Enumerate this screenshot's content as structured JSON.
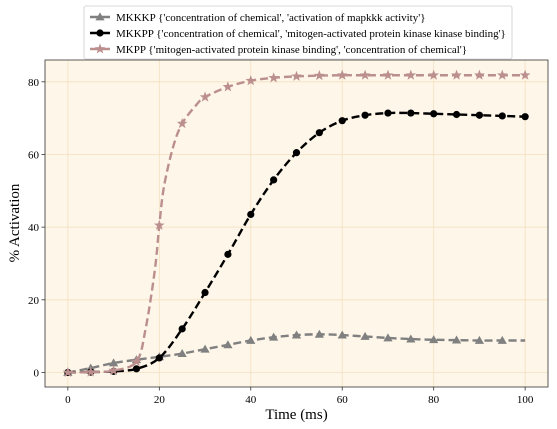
{
  "chart_data": {
    "type": "line",
    "xlabel": "Time (ms)",
    "ylabel": "% Activation",
    "xlim": [
      -5,
      105
    ],
    "ylim": [
      -4,
      86
    ],
    "xticks": [
      0,
      20,
      40,
      60,
      80,
      100
    ],
    "yticks": [
      0,
      20,
      40,
      60,
      80
    ],
    "grid": true,
    "legend_position": "top-center",
    "colors": {
      "plot_background": "#fdf6e9",
      "grid": "#f5dfbf",
      "axes": "#333333"
    },
    "series": [
      {
        "name": "MKKKP {'concentration of chemical', 'activation of mapkkk activity'}",
        "color": "#808080",
        "marker": "triangle",
        "x": [
          0,
          5,
          10,
          15,
          20,
          25,
          30,
          35,
          40,
          45,
          50,
          55,
          60,
          65,
          70,
          75,
          80,
          85,
          90,
          95,
          100
        ],
        "y": [
          0,
          1.2,
          2.6,
          3.5,
          4.3,
          5.2,
          6.4,
          7.6,
          8.8,
          9.7,
          10.3,
          10.5,
          10.3,
          9.9,
          9.5,
          9.2,
          9.0,
          8.9,
          8.8,
          8.8,
          8.8
        ],
        "marked_x": [
          0,
          5,
          10,
          15,
          20,
          25,
          30,
          35,
          40,
          45,
          50,
          55,
          60,
          65,
          70,
          75,
          80,
          85,
          90,
          95
        ]
      },
      {
        "name": "MKKPP {'concentration of chemical', 'mitogen-activated protein kinase kinase binding'}",
        "color": "#000000",
        "marker": "circle",
        "x": [
          0,
          5,
          10,
          15,
          20,
          25,
          30,
          35,
          40,
          45,
          50,
          55,
          60,
          65,
          70,
          75,
          80,
          85,
          90,
          95,
          100
        ],
        "y": [
          0,
          0.1,
          0.3,
          1.0,
          4.0,
          12.0,
          22.0,
          32.5,
          43.5,
          53.0,
          60.5,
          66.0,
          69.3,
          70.8,
          71.4,
          71.4,
          71.2,
          71.0,
          70.8,
          70.6,
          70.4
        ],
        "marked_x": [
          0,
          5,
          10,
          15,
          20,
          25,
          30,
          35,
          40,
          45,
          50,
          55,
          60,
          65,
          70,
          75,
          80,
          85,
          90,
          95,
          100
        ]
      },
      {
        "name": "MKPP {'mitogen-activated protein kinase binding', 'concentration of chemical'}",
        "color": "#bc8f8f",
        "marker": "star",
        "x": [
          0,
          5,
          10,
          15,
          17,
          19,
          20,
          21,
          23,
          25,
          28,
          30,
          35,
          40,
          45,
          50,
          55,
          60,
          65,
          70,
          75,
          80,
          85,
          90,
          95,
          100
        ],
        "y": [
          0,
          0.1,
          0.5,
          3.0,
          12.0,
          28.0,
          40.5,
          51.0,
          62.0,
          68.5,
          73.5,
          75.8,
          78.6,
          80.3,
          81.1,
          81.5,
          81.7,
          81.8,
          81.8,
          81.8,
          81.8,
          81.8,
          81.8,
          81.8,
          81.8,
          81.8
        ],
        "marked_x": [
          0,
          5,
          10,
          15,
          20,
          25,
          30,
          35,
          40,
          45,
          50,
          55,
          60,
          65,
          70,
          75,
          80,
          85,
          90,
          95,
          100
        ]
      }
    ]
  }
}
